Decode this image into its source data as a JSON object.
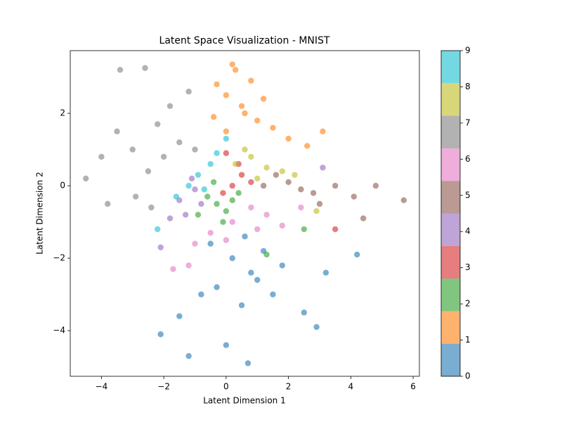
{
  "chart_data": {
    "type": "scatter",
    "title": "Latent Space Visualization - MNIST",
    "x_label": "Latent Dimension 1",
    "y_label": "Latent Dimension 2",
    "xlim": [
      -5,
      6.2
    ],
    "ylim": [
      -5.26,
      3.73
    ],
    "xticks": [
      {
        "value": -4,
        "label": "−4"
      },
      {
        "value": -2,
        "label": "−2"
      },
      0,
      2,
      4,
      6
    ],
    "yticks": [
      {
        "value": -4,
        "label": "−4"
      },
      {
        "value": -2,
        "label": "−2"
      },
      0,
      2
    ],
    "grid": false,
    "alpha": 0.6,
    "series": [
      {
        "color": "#1f77b4",
        "x": [
          0.2,
          0.8,
          -0.3,
          1.2,
          0.5,
          -0.8,
          1.8,
          2.5,
          3.2,
          -1.5,
          0.0,
          0.7,
          -2.1,
          4.2,
          1.0,
          -0.5,
          2.9,
          0.6,
          -1.2,
          1.5
        ],
        "values": [
          -2.0,
          -2.4,
          -2.8,
          -1.8,
          -3.3,
          -3.0,
          -2.2,
          -3.5,
          -2.4,
          -3.6,
          -4.4,
          -4.9,
          -4.1,
          -1.9,
          -2.6,
          -1.6,
          -3.9,
          -1.4,
          -4.7,
          -3.0
        ]
      },
      {
        "color": "#ff7f0e",
        "x": [
          0.0,
          0.3,
          0.6,
          -0.3,
          1.0,
          1.5,
          2.0,
          2.6,
          0.2,
          -0.4,
          0.8,
          1.2,
          3.1,
          0.0,
          0.5
        ],
        "values": [
          2.5,
          3.2,
          2.0,
          2.8,
          1.8,
          1.6,
          1.3,
          1.1,
          3.35,
          1.9,
          2.9,
          2.4,
          1.5,
          1.5,
          2.2
        ]
      },
      {
        "color": "#2ca02c",
        "x": [
          -0.3,
          0.0,
          -0.6,
          0.2,
          -0.1,
          -0.9,
          0.4,
          -0.4,
          2.5,
          1.3
        ],
        "values": [
          -0.5,
          -0.7,
          -0.3,
          -0.4,
          -1.0,
          -0.8,
          -0.2,
          0.1,
          -1.2,
          -1.9
        ]
      },
      {
        "color": "#d62728",
        "x": [
          0.2,
          0.5,
          -0.1,
          0.8,
          0.4,
          3.5,
          0.0
        ],
        "values": [
          0.0,
          0.3,
          -0.2,
          0.1,
          0.6,
          -1.2,
          0.9
        ]
      },
      {
        "color": "#9467bd",
        "x": [
          -1.5,
          -1.0,
          -1.3,
          -0.8,
          -1.8,
          -2.1,
          -1.1,
          3.1
        ],
        "values": [
          -0.4,
          -0.1,
          -0.8,
          -0.5,
          -0.9,
          -1.7,
          0.2,
          0.5
        ]
      },
      {
        "color": "#8c564b",
        "x": [
          1.2,
          2.0,
          2.8,
          3.5,
          4.1,
          4.8,
          5.7,
          1.6,
          3.0,
          4.4,
          2.4
        ],
        "values": [
          0.0,
          0.1,
          -0.2,
          0.0,
          -0.3,
          0.0,
          -0.4,
          0.3,
          -0.5,
          -0.9,
          -0.1
        ]
      },
      {
        "color": "#e377c2",
        "x": [
          0.2,
          0.8,
          1.3,
          -0.5,
          -1.0,
          -1.2,
          1.8,
          0.0,
          2.4,
          -1.7,
          1.0
        ],
        "values": [
          -1.0,
          -0.6,
          -0.8,
          -1.3,
          -1.6,
          -2.2,
          -1.1,
          -1.5,
          -0.6,
          -2.3,
          -1.2
        ]
      },
      {
        "color": "#7f7f7f",
        "x": [
          -2.0,
          -1.5,
          -2.5,
          -3.0,
          -3.4,
          -2.6,
          -1.2,
          -4.5,
          -3.8,
          -2.2,
          -1.0,
          -2.9,
          -3.5,
          -1.8,
          -4.0,
          -2.4
        ],
        "values": [
          0.8,
          1.2,
          0.4,
          1.0,
          3.2,
          3.25,
          2.6,
          0.2,
          -0.5,
          1.7,
          1.0,
          -0.3,
          1.5,
          2.2,
          0.8,
          -0.6
        ]
      },
      {
        "color": "#bcbd22",
        "x": [
          0.3,
          0.8,
          1.3,
          1.8,
          0.6,
          2.2,
          1.0,
          2.9
        ],
        "values": [
          0.6,
          0.8,
          0.5,
          0.4,
          1.0,
          0.3,
          0.2,
          -0.7
        ]
      },
      {
        "color": "#17becf",
        "x": [
          -0.9,
          -0.5,
          -1.2,
          -0.3,
          -1.6,
          -0.7,
          -2.2,
          0.0
        ],
        "values": [
          0.3,
          0.6,
          0.0,
          0.9,
          -0.3,
          -0.1,
          -1.2,
          1.3
        ]
      }
    ],
    "colorbar": {
      "lim": [
        0,
        9
      ],
      "ticks": [
        0,
        1,
        2,
        3,
        4,
        5,
        6,
        7,
        8,
        9
      ]
    }
  }
}
